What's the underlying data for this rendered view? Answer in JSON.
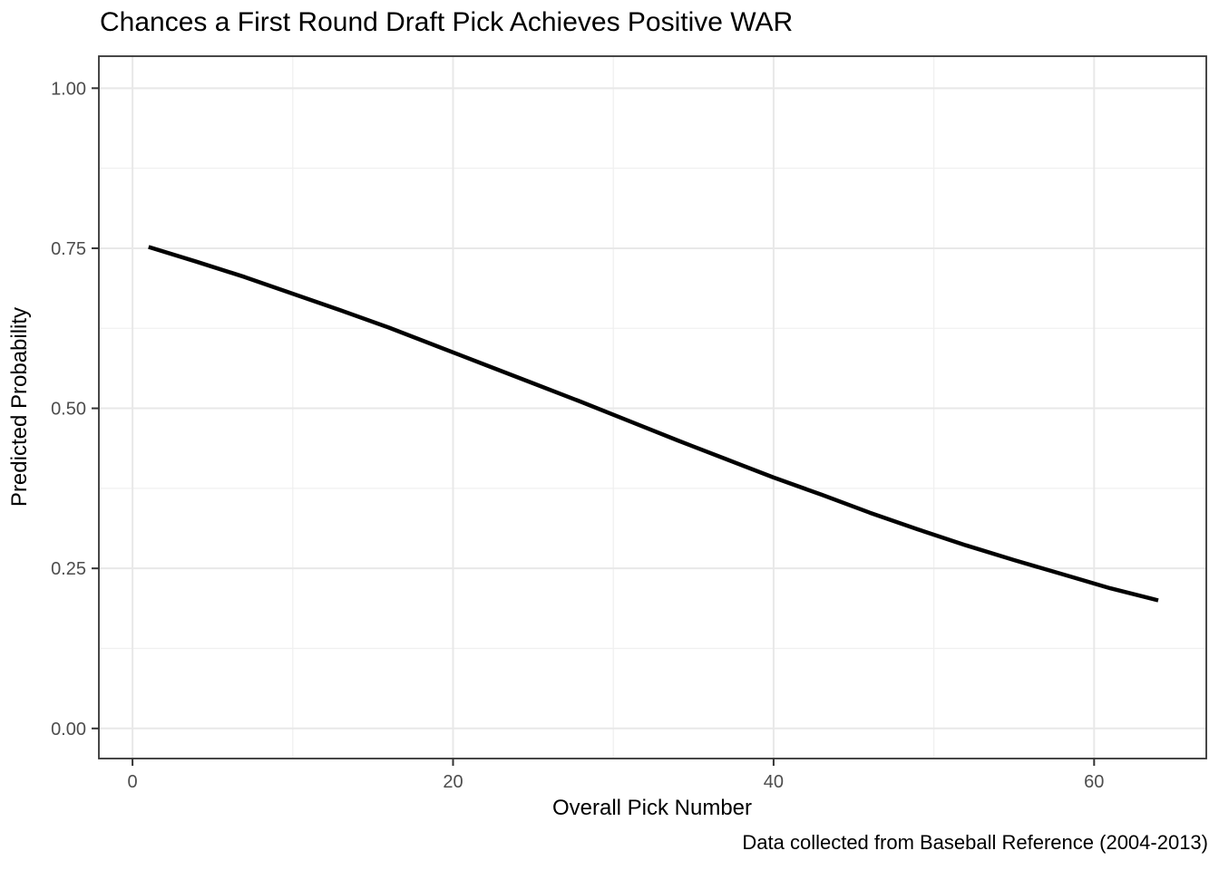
{
  "chart_data": {
    "type": "line",
    "title": "Chances a First Round Draft Pick Achieves Positive WAR",
    "xlabel": "Overall Pick Number",
    "ylabel": "Predicted Probability",
    "caption": "Data collected from Baseball Reference (2004-2013)",
    "xlim": [
      -2.1,
      67.0
    ],
    "ylim": [
      -0.047,
      1.05
    ],
    "grid": true,
    "legend": "none",
    "x_ticks": [
      {
        "value": 0,
        "label": "0"
      },
      {
        "value": 20,
        "label": "20"
      },
      {
        "value": 40,
        "label": "40"
      },
      {
        "value": 60,
        "label": "60"
      }
    ],
    "y_ticks": [
      {
        "value": 0.0,
        "label": "0.00"
      },
      {
        "value": 0.25,
        "label": "0.25"
      },
      {
        "value": 0.5,
        "label": "0.50"
      },
      {
        "value": 0.75,
        "label": "0.75"
      },
      {
        "value": 1.0,
        "label": "1.00"
      }
    ],
    "x_minor": [
      10,
      30,
      50
    ],
    "y_minor": [
      0.125,
      0.375,
      0.625,
      0.875
    ],
    "series": [
      {
        "name": "predicted-probability-curve",
        "color": "#000000",
        "points": [
          [
            1,
            0.752
          ],
          [
            4,
            0.729
          ],
          [
            7,
            0.705
          ],
          [
            10,
            0.679
          ],
          [
            13,
            0.653
          ],
          [
            16,
            0.626
          ],
          [
            19,
            0.597
          ],
          [
            22,
            0.568
          ],
          [
            25,
            0.539
          ],
          [
            28,
            0.51
          ],
          [
            31,
            0.48
          ],
          [
            34,
            0.45
          ],
          [
            37,
            0.421
          ],
          [
            40,
            0.392
          ],
          [
            43,
            0.365
          ],
          [
            46,
            0.337
          ],
          [
            49,
            0.311
          ],
          [
            52,
            0.286
          ],
          [
            55,
            0.263
          ],
          [
            58,
            0.241
          ],
          [
            61,
            0.219
          ],
          [
            64,
            0.2
          ]
        ]
      }
    ],
    "colors": {
      "line": "#000000",
      "grid_major": "#E8E8E8",
      "grid_minor": "#F0F0F0",
      "panel_border": "#333333",
      "tick_mark": "#333333",
      "tick_label": "#4D4D4D",
      "background": "#FFFFFF"
    }
  }
}
